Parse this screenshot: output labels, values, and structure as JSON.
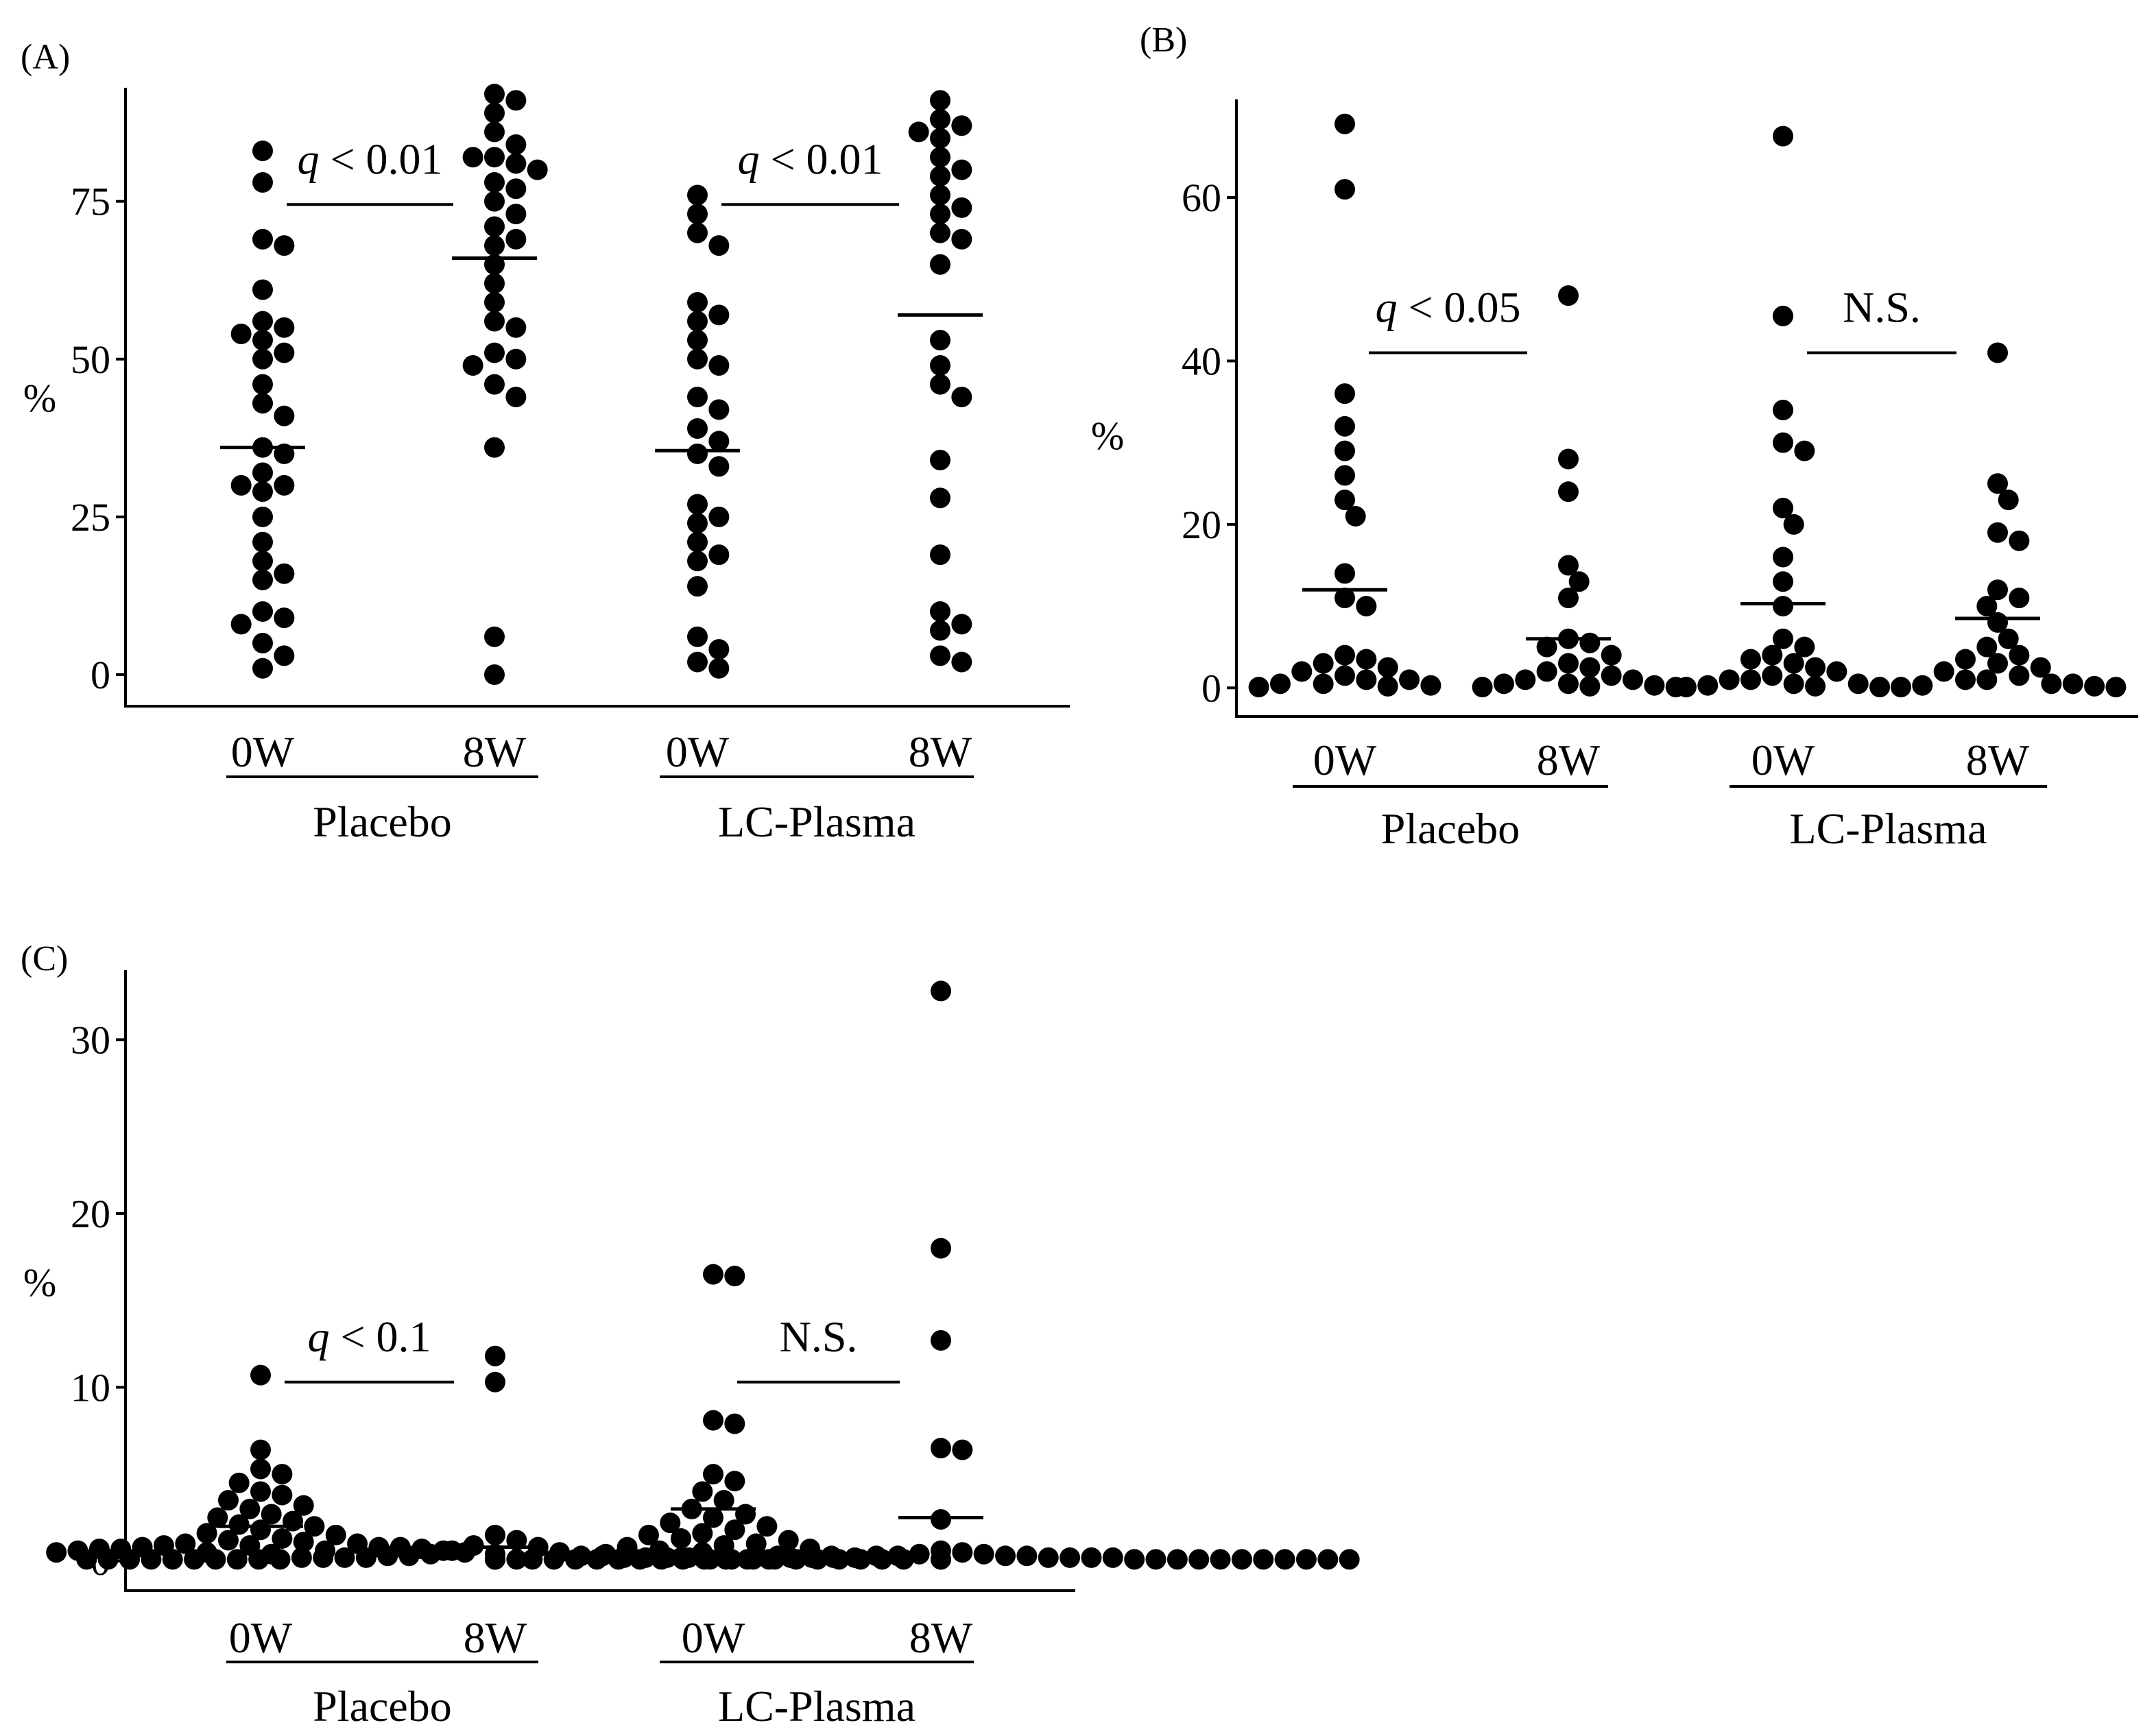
{
  "colors": {
    "ink": "#000000",
    "background": "#ffffff"
  },
  "chart_data": [
    {
      "panel": "(A)",
      "type": "scatter",
      "ylabel": "%",
      "ylim": [
        -5,
        93
      ],
      "yticks": [
        0,
        25,
        50,
        75
      ],
      "categories": [
        "0W",
        "8W",
        "0W",
        "8W"
      ],
      "groups": [
        {
          "name": "Placebo",
          "categories": [
            0,
            1
          ]
        },
        {
          "name": "LC-Plasma",
          "categories": [
            2,
            3
          ]
        }
      ],
      "series": [
        {
          "group": "Placebo",
          "time": "0W",
          "mean": 36,
          "values": [
            83,
            78,
            69,
            68,
            61,
            56,
            55,
            54,
            53,
            51,
            50,
            46,
            43,
            41,
            36,
            35,
            32,
            30,
            30,
            29,
            25,
            21,
            18,
            16,
            15,
            10,
            9,
            8,
            5,
            3,
            1
          ]
        },
        {
          "group": "Placebo",
          "time": "8W",
          "mean": 66,
          "values": [
            92,
            91,
            89,
            86,
            84,
            82,
            82,
            81,
            80,
            78,
            77,
            75,
            73,
            71,
            69,
            68,
            65,
            62,
            59,
            56,
            55,
            51,
            50,
            49,
            46,
            44,
            36,
            6,
            0
          ]
        },
        {
          "group": "LC-Plasma",
          "time": "0W",
          "mean": 35.5,
          "values": [
            76,
            73,
            70,
            68,
            59,
            57,
            56,
            53,
            50,
            49,
            44,
            42,
            39,
            37,
            35,
            33,
            27,
            25,
            24,
            21,
            19,
            18,
            14,
            6,
            4,
            2,
            1
          ]
        },
        {
          "group": "LC-Plasma",
          "time": "8W",
          "mean": 57,
          "values": [
            91,
            88,
            87,
            86,
            85,
            82,
            80,
            79,
            76,
            74,
            73,
            70,
            69,
            65,
            53,
            49,
            46,
            44,
            34,
            28,
            19,
            10,
            8,
            7,
            3,
            2
          ]
        }
      ],
      "annotations": [
        {
          "between": [
            "Placebo 0W",
            "Placebo 8W"
          ],
          "y": 74.5,
          "q": "q",
          "text": " < 0.01"
        },
        {
          "between": [
            "LC-Plasma 0W",
            "LC-Plasma 8W"
          ],
          "y": 74.5,
          "q": "q",
          "text": " < 0.01"
        }
      ]
    },
    {
      "panel": "(B)",
      "type": "scatter",
      "ylabel": "%",
      "ylim": [
        -3.5,
        72
      ],
      "yticks": [
        0,
        20,
        40,
        60
      ],
      "categories": [
        "0W",
        "8W",
        "0W",
        "8W"
      ],
      "groups": [
        {
          "name": "Placebo",
          "categories": [
            0,
            1
          ]
        },
        {
          "name": "LC-Plasma",
          "categories": [
            2,
            3
          ]
        }
      ],
      "series": [
        {
          "group": "Placebo",
          "time": "0W",
          "mean": 12,
          "values": [
            69,
            61,
            36,
            32,
            29,
            26,
            23,
            21,
            14,
            11,
            10,
            4,
            3.5,
            3,
            2.5,
            2,
            1.5,
            1,
            1,
            0.5,
            0.5,
            0.3,
            0.2,
            0.1
          ]
        },
        {
          "group": "Placebo",
          "time": "8W",
          "mean": 6,
          "values": [
            48,
            28,
            24,
            15,
            13,
            11,
            6,
            5.5,
            5,
            4,
            3,
            2.5,
            2,
            1.5,
            1,
            1,
            0.5,
            0.5,
            0.3,
            0.2,
            0.1,
            0.1
          ]
        },
        {
          "group": "LC-Plasma",
          "time": "0W",
          "mean": 10.3,
          "values": [
            67.5,
            45.5,
            34,
            30,
            29,
            22,
            20,
            16,
            13,
            10,
            6,
            5,
            4,
            3.5,
            3,
            2.5,
            2,
            1.5,
            1,
            1,
            0.5,
            0.5,
            0.3,
            0.2,
            0.1,
            0.1
          ]
        },
        {
          "group": "LC-Plasma",
          "time": "8W",
          "mean": 8.5,
          "values": [
            41,
            25,
            23,
            19,
            18,
            12,
            11,
            10,
            8,
            6,
            5,
            4,
            3.5,
            3,
            2.5,
            2,
            1.5,
            1,
            1,
            0.5,
            0.5,
            0.3,
            0.2,
            0.1,
            0.1
          ]
        }
      ],
      "annotations": [
        {
          "between": [
            "Placebo 0W",
            "Placebo 8W"
          ],
          "y": 41,
          "q": "q",
          "text": " < 0.05"
        },
        {
          "between": [
            "LC-Plasma 0W",
            "LC-Plasma 8W"
          ],
          "y": 41,
          "q": "",
          "text": "N.S."
        }
      ]
    },
    {
      "panel": "(C)",
      "type": "scatter",
      "ylabel": "%",
      "ylim": [
        -1.7,
        34
      ],
      "yticks": [
        0,
        10,
        20,
        30
      ],
      "categories": [
        "0W",
        "8W",
        "0W",
        "8W"
      ],
      "groups": [
        {
          "name": "Placebo",
          "categories": [
            0,
            1
          ]
        },
        {
          "name": "LC-Plasma",
          "categories": [
            2,
            3
          ]
        }
      ],
      "series": [
        {
          "group": "Placebo",
          "time": "0W",
          "mean": 2,
          "values": [
            10.7,
            6.4,
            5.3,
            5,
            4.5,
            4,
            3.8,
            3.5,
            3.2,
            3,
            2.7,
            2.5,
            2.3,
            2.1,
            2,
            1.8,
            1.6,
            1.5,
            1.3,
            1.2,
            1.1,
            1,
            1,
            0.9,
            0.9,
            0.8,
            0.8,
            0.8,
            0.7,
            0.7,
            0.7,
            0.6,
            0.6,
            0.6,
            0.5,
            0.5,
            0.5,
            0.4
          ]
        },
        {
          "group": "Placebo",
          "time": "8W",
          "mean": 0.8,
          "values": [
            11.8,
            10.3,
            1.5,
            1.2,
            0.9,
            0.8,
            0.6,
            0.5,
            0.4,
            0.4,
            0.3,
            0.3,
            0.3,
            0.3,
            0.2,
            0.2,
            0.2,
            0.2,
            0.2,
            0.2,
            0.2,
            0.2,
            0.1,
            0.1,
            0.1,
            0.1,
            0.1,
            0.1,
            0.1,
            0.1,
            0.1,
            0.1,
            0.1,
            0.1,
            0.1,
            0.1,
            0.1,
            0.1,
            0.1,
            0.1,
            0.1,
            0.1,
            0.1,
            0.1,
            0.1,
            0.1,
            0.1
          ]
        },
        {
          "group": "LC-Plasma",
          "time": "0W",
          "mean": 3,
          "values": [
            16.5,
            16.4,
            8.1,
            7.9,
            5,
            4.6,
            4,
            3.5,
            3,
            2.7,
            2.5,
            2.2,
            2,
            1.8,
            1.6,
            1.5,
            1.3,
            1.2,
            1,
            0.9,
            0.8,
            0.7,
            0.6,
            0.5,
            0.4,
            0.3,
            0.3,
            0.2
          ]
        },
        {
          "group": "LC-Plasma",
          "time": "8W",
          "mean": 2.5,
          "values": [
            32.8,
            18,
            12.7,
            6.5,
            6.4,
            2.4,
            0.6,
            0.5,
            0.4,
            0.4,
            0.3,
            0.3,
            0.3,
            0.3,
            0.2,
            0.2,
            0.2,
            0.2,
            0.2,
            0.2,
            0.2,
            0.2,
            0.1,
            0.1,
            0.1,
            0.1,
            0.1,
            0.1,
            0.1,
            0.1,
            0.1,
            0.1,
            0.1,
            0.1,
            0.1,
            0.1,
            0.1,
            0.1,
            0.1,
            0.1,
            0.1,
            0.1,
            0.1,
            0.1,
            0.1,
            0.1,
            0.1
          ]
        }
      ],
      "annotations": [
        {
          "between": [
            "Placebo 0W",
            "Placebo 8W"
          ],
          "y": 10.3,
          "q": "q",
          "text": " < 0.1"
        },
        {
          "between": [
            "LC-Plasma 0W",
            "LC-Plasma 8W"
          ],
          "y": 10.3,
          "q": "",
          "text": "N.S."
        }
      ]
    }
  ]
}
